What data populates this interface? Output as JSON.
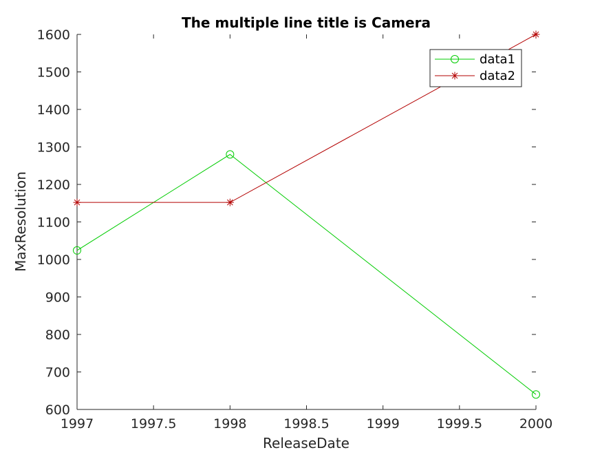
{
  "chart_data": {
    "type": "line",
    "title": "The multiple line title is Camera",
    "xlabel": "ReleaseDate",
    "ylabel": "MaxResolution",
    "xlim": [
      1997,
      2000
    ],
    "ylim": [
      600,
      1600
    ],
    "xticks": [
      1997,
      1997.5,
      1998,
      1998.5,
      1999,
      1999.5,
      2000
    ],
    "xtick_labels": [
      "1997",
      "1997.5",
      "1998",
      "1998.5",
      "1999",
      "1999.5",
      "2000"
    ],
    "yticks": [
      600,
      700,
      800,
      900,
      1000,
      1100,
      1200,
      1300,
      1400,
      1500,
      1600
    ],
    "ytick_labels": [
      "600",
      "700",
      "800",
      "900",
      "1000",
      "1100",
      "1200",
      "1300",
      "1400",
      "1500",
      "1600"
    ],
    "grid": false,
    "legend_position": "top-right",
    "series": [
      {
        "name": "data1",
        "color": "#00cc00",
        "marker": "circle",
        "x": [
          1997,
          1998,
          2000
        ],
        "y": [
          1024,
          1280,
          640
        ]
      },
      {
        "name": "data2",
        "color": "#b30000",
        "marker": "asterisk",
        "x": [
          1997,
          1998,
          2000
        ],
        "y": [
          1152,
          1152,
          1600
        ]
      }
    ]
  }
}
